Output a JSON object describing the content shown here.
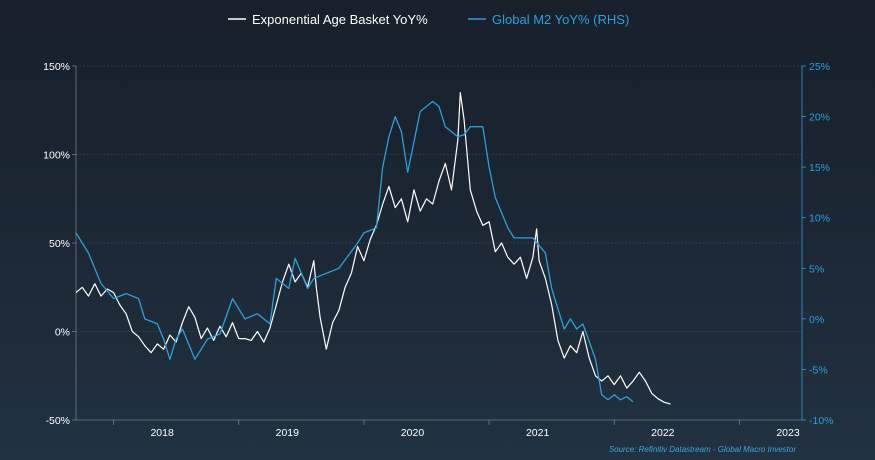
{
  "chart_data": {
    "type": "line",
    "source": "Source: Refinitiv Datastream - Global Macro Investor",
    "colors": {
      "series_left": "#ffffff",
      "series_right": "#2e9fd6",
      "left_axis_text": "#ffffff",
      "right_axis_text": "#2e9fd6"
    },
    "x_ticks": [
      "2018",
      "2019",
      "2020",
      "2021",
      "2022",
      "2023"
    ],
    "xlim": [
      2017.7,
      2023.5
    ],
    "y_left": {
      "ticks": [
        "150%",
        "100%",
        "50%",
        "0%",
        "-50%"
      ],
      "ylim": [
        -50,
        150
      ]
    },
    "y_right": {
      "ticks": [
        "25%",
        "20%",
        "15%",
        "10%",
        "5%",
        "0%",
        "-5%",
        "-10%"
      ],
      "ylim": [
        -10,
        25
      ]
    },
    "grid": "horizontal",
    "legend_position": "top-center",
    "series": [
      {
        "name": "Exponential Age Basket YoY%",
        "axis": "left",
        "points": [
          [
            2017.7,
            22
          ],
          [
            2017.75,
            25
          ],
          [
            2017.8,
            20
          ],
          [
            2017.85,
            27
          ],
          [
            2017.9,
            20
          ],
          [
            2017.95,
            24
          ],
          [
            2018.0,
            22
          ],
          [
            2018.05,
            15
          ],
          [
            2018.1,
            10
          ],
          [
            2018.15,
            0
          ],
          [
            2018.2,
            -3
          ],
          [
            2018.25,
            -8
          ],
          [
            2018.3,
            -12
          ],
          [
            2018.35,
            -7
          ],
          [
            2018.4,
            -10
          ],
          [
            2018.45,
            -2
          ],
          [
            2018.5,
            -6
          ],
          [
            2018.55,
            5
          ],
          [
            2018.6,
            14
          ],
          [
            2018.65,
            8
          ],
          [
            2018.7,
            -4
          ],
          [
            2018.75,
            2
          ],
          [
            2018.8,
            -5
          ],
          [
            2018.85,
            3
          ],
          [
            2018.9,
            -3
          ],
          [
            2018.95,
            5
          ],
          [
            2019.0,
            -4
          ],
          [
            2019.05,
            -4
          ],
          [
            2019.1,
            -5
          ],
          [
            2019.15,
            0
          ],
          [
            2019.2,
            -6
          ],
          [
            2019.25,
            2
          ],
          [
            2019.3,
            15
          ],
          [
            2019.35,
            28
          ],
          [
            2019.4,
            38
          ],
          [
            2019.45,
            28
          ],
          [
            2019.5,
            33
          ],
          [
            2019.55,
            25
          ],
          [
            2019.6,
            40
          ],
          [
            2019.62,
            25
          ],
          [
            2019.65,
            8
          ],
          [
            2019.7,
            -10
          ],
          [
            2019.75,
            5
          ],
          [
            2019.8,
            12
          ],
          [
            2019.85,
            25
          ],
          [
            2019.9,
            33
          ],
          [
            2019.95,
            48
          ],
          [
            2020.0,
            40
          ],
          [
            2020.05,
            52
          ],
          [
            2020.1,
            60
          ],
          [
            2020.15,
            72
          ],
          [
            2020.2,
            82
          ],
          [
            2020.25,
            70
          ],
          [
            2020.3,
            75
          ],
          [
            2020.35,
            62
          ],
          [
            2020.4,
            80
          ],
          [
            2020.45,
            68
          ],
          [
            2020.5,
            75
          ],
          [
            2020.55,
            72
          ],
          [
            2020.6,
            85
          ],
          [
            2020.65,
            95
          ],
          [
            2020.7,
            80
          ],
          [
            2020.75,
            108
          ],
          [
            2020.77,
            135
          ],
          [
            2020.8,
            120
          ],
          [
            2020.85,
            80
          ],
          [
            2020.9,
            68
          ],
          [
            2020.95,
            60
          ],
          [
            2021.0,
            62
          ],
          [
            2021.05,
            45
          ],
          [
            2021.1,
            50
          ],
          [
            2021.15,
            42
          ],
          [
            2021.2,
            38
          ],
          [
            2021.25,
            42
          ],
          [
            2021.3,
            30
          ],
          [
            2021.35,
            42
          ],
          [
            2021.38,
            58
          ],
          [
            2021.4,
            40
          ],
          [
            2021.45,
            30
          ],
          [
            2021.5,
            15
          ],
          [
            2021.55,
            -5
          ],
          [
            2021.6,
            -15
          ],
          [
            2021.65,
            -8
          ],
          [
            2021.7,
            -12
          ],
          [
            2021.75,
            0
          ],
          [
            2021.8,
            -15
          ],
          [
            2021.85,
            -25
          ],
          [
            2021.9,
            -28
          ],
          [
            2021.95,
            -25
          ],
          [
            2022.0,
            -30
          ],
          [
            2022.05,
            -25
          ],
          [
            2022.1,
            -32
          ],
          [
            2022.15,
            -28
          ],
          [
            2022.2,
            -23
          ],
          [
            2022.25,
            -28
          ],
          [
            2022.3,
            -35
          ],
          [
            2022.35,
            -38
          ],
          [
            2022.4,
            -40
          ],
          [
            2022.45,
            -41
          ]
        ]
      },
      {
        "name": "Global M2 YoY% (RHS)",
        "axis": "right",
        "points": [
          [
            2017.7,
            8.5
          ],
          [
            2017.8,
            6.5
          ],
          [
            2017.9,
            3.5
          ],
          [
            2018.0,
            2.0
          ],
          [
            2018.1,
            2.5
          ],
          [
            2018.2,
            2.0
          ],
          [
            2018.25,
            0.0
          ],
          [
            2018.35,
            -0.5
          ],
          [
            2018.4,
            -2.0
          ],
          [
            2018.45,
            -4.0
          ],
          [
            2018.5,
            -2.0
          ],
          [
            2018.55,
            -1.0
          ],
          [
            2018.6,
            -2.5
          ],
          [
            2018.65,
            -4.0
          ],
          [
            2018.75,
            -2.0
          ],
          [
            2018.85,
            -1.5
          ],
          [
            2018.95,
            2.0
          ],
          [
            2019.05,
            0.0
          ],
          [
            2019.15,
            0.5
          ],
          [
            2019.25,
            -0.5
          ],
          [
            2019.3,
            4.0
          ],
          [
            2019.4,
            3.0
          ],
          [
            2019.45,
            6.0
          ],
          [
            2019.55,
            3.0
          ],
          [
            2019.6,
            4.0
          ],
          [
            2019.7,
            4.5
          ],
          [
            2019.8,
            5.0
          ],
          [
            2019.95,
            7.5
          ],
          [
            2020.0,
            8.5
          ],
          [
            2020.1,
            9.0
          ],
          [
            2020.15,
            15.0
          ],
          [
            2020.2,
            18.0
          ],
          [
            2020.25,
            20.0
          ],
          [
            2020.3,
            18.5
          ],
          [
            2020.35,
            14.5
          ],
          [
            2020.45,
            20.5
          ],
          [
            2020.55,
            21.5
          ],
          [
            2020.6,
            21.0
          ],
          [
            2020.65,
            19.0
          ],
          [
            2020.75,
            18.0
          ],
          [
            2020.8,
            18.2
          ],
          [
            2020.85,
            19.0
          ],
          [
            2020.95,
            19.0
          ],
          [
            2021.0,
            15.0
          ],
          [
            2021.05,
            12.0
          ],
          [
            2021.1,
            10.5
          ],
          [
            2021.15,
            9.0
          ],
          [
            2021.2,
            8.0
          ],
          [
            2021.3,
            8.0
          ],
          [
            2021.35,
            8.0
          ],
          [
            2021.45,
            6.5
          ],
          [
            2021.5,
            3.0
          ],
          [
            2021.55,
            1.0
          ],
          [
            2021.6,
            -1.0
          ],
          [
            2021.65,
            0.0
          ],
          [
            2021.7,
            -1.0
          ],
          [
            2021.75,
            -0.5
          ],
          [
            2021.85,
            -4.0
          ],
          [
            2021.9,
            -7.5
          ],
          [
            2021.95,
            -8.0
          ],
          [
            2022.0,
            -7.5
          ],
          [
            2022.05,
            -8.0
          ],
          [
            2022.1,
            -7.7
          ],
          [
            2022.15,
            -8.2
          ]
        ]
      }
    ]
  }
}
